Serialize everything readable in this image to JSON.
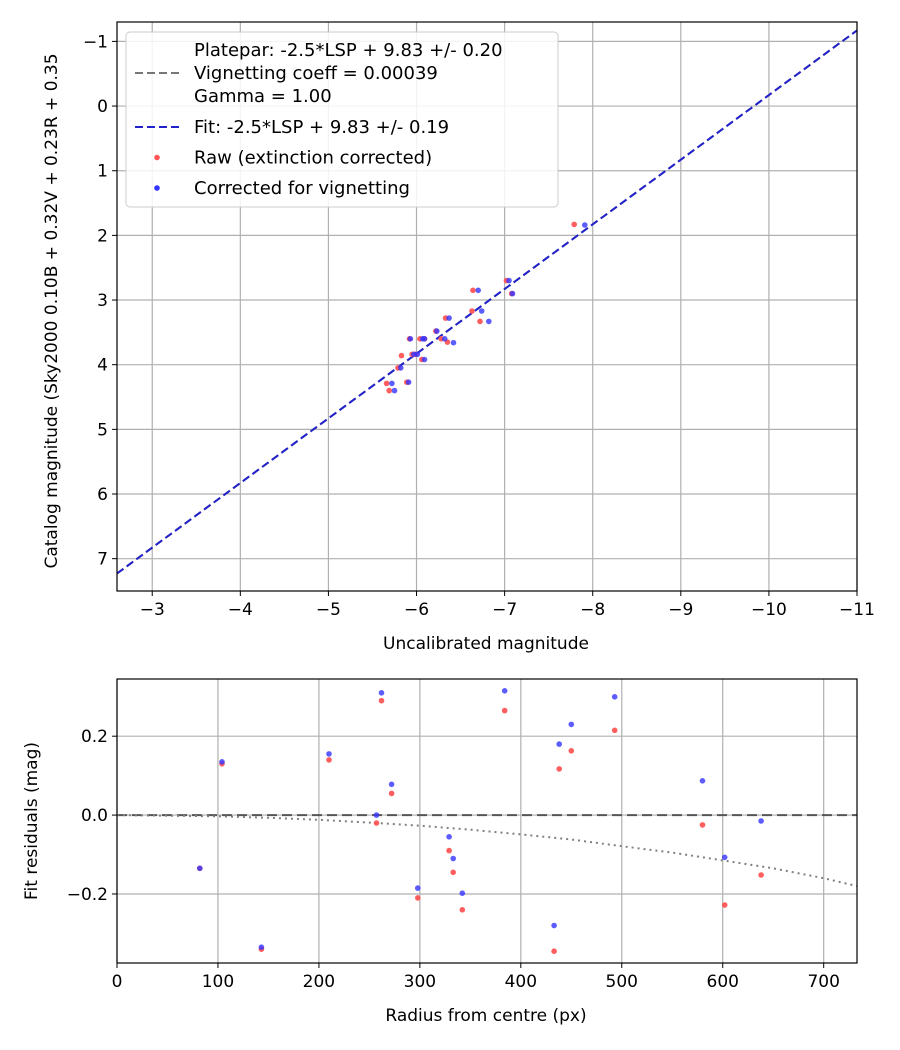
{
  "colors": {
    "raw": "#ff5555",
    "corrected": "#3333ff",
    "fit": "#2222cc",
    "platepar": "#777777",
    "grid": "#b0b0b0"
  },
  "chart_data": [
    {
      "type": "scatter",
      "xlabel": "Uncalibrated magnitude",
      "ylabel": "Catalog magnitude (Sky2000 0.10B + 0.32V + 0.23R + 0.35",
      "xlim": [
        -2.6,
        -11
      ],
      "ylim": [
        7.5,
        -1.3
      ],
      "xticks": [
        -3,
        -4,
        -5,
        -6,
        -7,
        -8,
        -9,
        -10,
        -11
      ],
      "yticks": [
        -1,
        0,
        1,
        2,
        3,
        4,
        5,
        6,
        7
      ],
      "x_tick_labels": [
        "−3",
        "−4",
        "−5",
        "−6",
        "−7",
        "−8",
        "−9",
        "−10",
        "−11"
      ],
      "y_tick_labels": [
        "−1",
        "0",
        "1",
        "2",
        "3",
        "4",
        "5",
        "6",
        "7"
      ],
      "grid": true,
      "legend_position": "top-left",
      "legend": [
        {
          "kind": "line",
          "dash": "dashed",
          "color": "#777777",
          "lines": [
            "Platepar: -2.5*LSP + 9.83 +/- 0.20",
            "Vignetting coeff = 0.00039",
            "Gamma = 1.00"
          ]
        },
        {
          "kind": "line",
          "dash": "dashed",
          "color": "#2222cc",
          "lines": [
            "Fit: -2.5*LSP + 9.83 +/- 0.19"
          ]
        },
        {
          "kind": "dot",
          "color": "#ff5555",
          "lines": [
            "Raw (extinction corrected)"
          ]
        },
        {
          "kind": "dot",
          "color": "#3333ff",
          "lines": [
            "Corrected for vignetting"
          ]
        }
      ],
      "lines": [
        {
          "name": "Platepar: -2.5*LSP + 9.83 +/- 0.20",
          "x": [
            -2.6,
            -11
          ],
          "y": [
            7.23,
            -1.17
          ]
        },
        {
          "name": "Fit: -2.5*LSP + 9.83 +/- 0.19",
          "x": [
            -2.6,
            -11
          ],
          "y": [
            7.23,
            -1.17
          ]
        }
      ],
      "series": [
        {
          "name": "Raw (extinction corrected)",
          "points": [
            [
              -7.79,
              1.83
            ],
            [
              -7.02,
              2.7
            ],
            [
              -7.08,
              2.9
            ],
            [
              -6.64,
              2.85
            ],
            [
              -6.63,
              3.17
            ],
            [
              -6.72,
              3.33
            ],
            [
              -6.33,
              3.28
            ],
            [
              -6.22,
              3.48
            ],
            [
              -6.28,
              3.6
            ],
            [
              -6.35,
              3.65
            ],
            [
              -6.04,
              3.6
            ],
            [
              -6.09,
              3.6
            ],
            [
              -5.92,
              3.6
            ],
            [
              -5.95,
              3.84
            ],
            [
              -5.99,
              3.84
            ],
            [
              -6.06,
              3.92
            ],
            [
              -5.83,
              3.86
            ],
            [
              -5.79,
              4.05
            ],
            [
              -5.89,
              4.27
            ],
            [
              -5.66,
              4.29
            ],
            [
              -5.69,
              4.4
            ]
          ]
        },
        {
          "name": "Corrected for vignetting",
          "points": [
            [
              -7.91,
              1.84
            ],
            [
              -7.05,
              2.7
            ],
            [
              -7.09,
              2.9
            ],
            [
              -6.7,
              2.85
            ],
            [
              -6.74,
              3.17
            ],
            [
              -6.82,
              3.33
            ],
            [
              -6.37,
              3.28
            ],
            [
              -6.23,
              3.48
            ],
            [
              -6.32,
              3.6
            ],
            [
              -6.42,
              3.66
            ],
            [
              -6.07,
              3.6
            ],
            [
              -6.09,
              3.6
            ],
            [
              -5.93,
              3.6
            ],
            [
              -5.97,
              3.84
            ],
            [
              -6.01,
              3.84
            ],
            [
              -6.09,
              3.92
            ],
            [
              -5.82,
              4.05
            ],
            [
              -5.91,
              4.27
            ],
            [
              -5.72,
              4.29
            ],
            [
              -5.75,
              4.4
            ]
          ]
        }
      ]
    },
    {
      "type": "scatter",
      "xlabel": "Radius from centre (px)",
      "ylabel": "Fit residuals (mag)",
      "xlim": [
        0,
        733
      ],
      "ylim": [
        -0.375,
        0.345
      ],
      "xticks": [
        0,
        100,
        200,
        300,
        400,
        500,
        600,
        700
      ],
      "yticks": [
        -0.2,
        0.0,
        0.2
      ],
      "x_tick_labels": [
        "0",
        "100",
        "200",
        "300",
        "400",
        "500",
        "600",
        "700"
      ],
      "y_tick_labels": [
        "−0.2",
        "0.0",
        "0.2"
      ],
      "grid": true,
      "lines": [
        {
          "name": "zero",
          "dash": "dashed",
          "color": "#555555",
          "x": [
            0,
            733
          ],
          "y": [
            0,
            0
          ]
        },
        {
          "name": "vignetting curve",
          "dash": "dotted",
          "color": "#808080",
          "x": [
            0,
            100,
            150,
            200,
            250,
            300,
            350,
            400,
            450,
            500,
            550,
            600,
            650,
            700,
            733
          ],
          "y": [
            0,
            -0.003,
            -0.007,
            -0.012,
            -0.019,
            -0.027,
            -0.037,
            -0.049,
            -0.062,
            -0.079,
            -0.095,
            -0.115,
            -0.135,
            -0.16,
            -0.18
          ]
        }
      ],
      "series": [
        {
          "name": "Raw (extinction corrected)",
          "points": [
            [
              82,
              -0.135
            ],
            [
              104,
              0.13
            ],
            [
              143,
              -0.34
            ],
            [
              210,
              0.14
            ],
            [
              257,
              -0.02
            ],
            [
              262,
              0.29
            ],
            [
              272,
              0.055
            ],
            [
              298,
              -0.21
            ],
            [
              329,
              -0.09
            ],
            [
              333,
              -0.145
            ],
            [
              342,
              -0.24
            ],
            [
              384,
              0.265
            ],
            [
              433,
              -0.345
            ],
            [
              438,
              0.117
            ],
            [
              450,
              0.163
            ],
            [
              493,
              0.215
            ],
            [
              580,
              -0.025
            ],
            [
              602,
              -0.228
            ],
            [
              638,
              -0.152
            ]
          ]
        },
        {
          "name": "Corrected for vignetting",
          "points": [
            [
              82,
              -0.135
            ],
            [
              104,
              0.135
            ],
            [
              143,
              -0.335
            ],
            [
              210,
              0.155
            ],
            [
              257,
              0.0
            ],
            [
              262,
              0.31
            ],
            [
              272,
              0.078
            ],
            [
              298,
              -0.185
            ],
            [
              329,
              -0.055
            ],
            [
              333,
              -0.11
            ],
            [
              342,
              -0.198
            ],
            [
              384,
              0.315
            ],
            [
              433,
              -0.28
            ],
            [
              438,
              0.18
            ],
            [
              450,
              0.23
            ],
            [
              493,
              0.3
            ],
            [
              580,
              0.087
            ],
            [
              602,
              -0.107
            ],
            [
              638,
              -0.015
            ]
          ]
        }
      ]
    }
  ]
}
